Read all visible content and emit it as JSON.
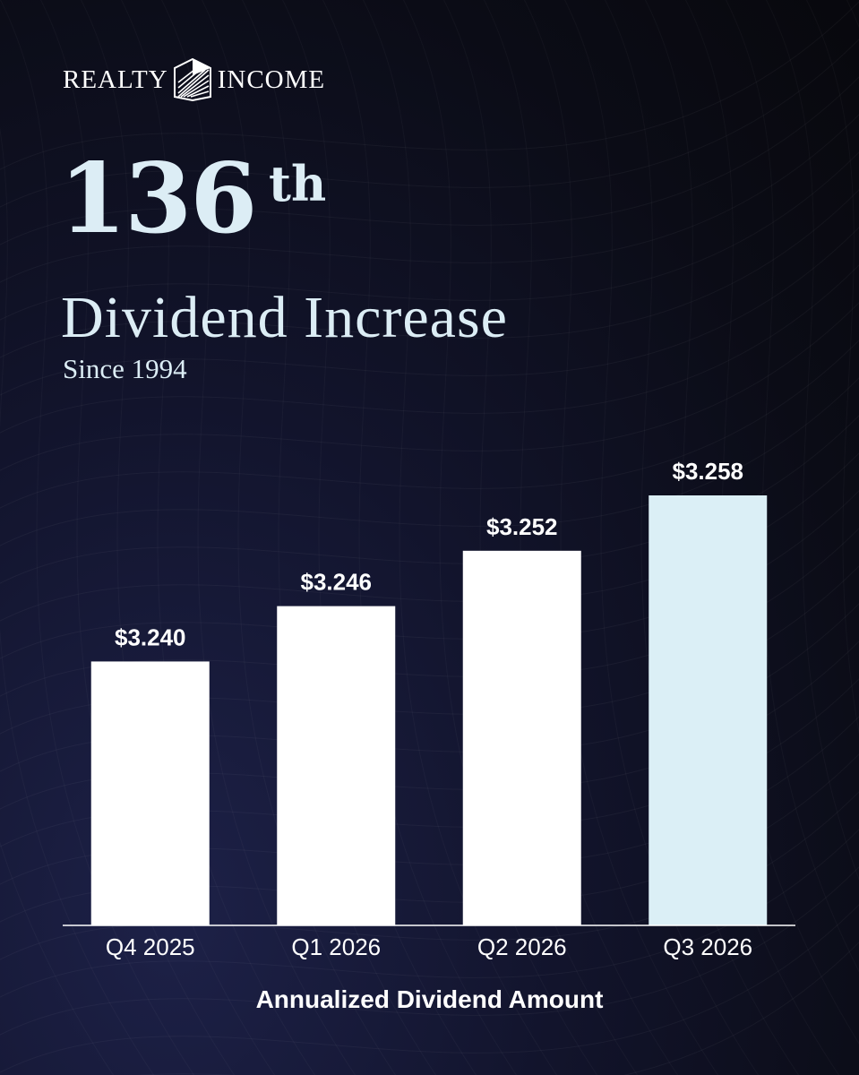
{
  "brand": {
    "word_left": "REALTY",
    "word_right": "INCOME",
    "mark_icon": "realty-income-logo-icon",
    "colors": {
      "mark": "#ffffff"
    }
  },
  "headline": {
    "number": "136",
    "ordinal": "th",
    "title": "Dividend Increase",
    "subtitle": "Since 1994"
  },
  "colors": {
    "heading_text": "#dcedf5",
    "bar_default": "#ffffff",
    "bar_highlight": "#dbeff6",
    "axis_line": "#ffffff",
    "background_dark": "#0b0c16",
    "background_glow": "#1d2148"
  },
  "chart_data": {
    "type": "bar",
    "categories": [
      "Q4 2025",
      "Q1 2026",
      "Q2 2026",
      "Q3 2026"
    ],
    "values": [
      3.24,
      3.246,
      3.252,
      3.258
    ],
    "data_labels": [
      "$3.240",
      "$3.246",
      "$3.252",
      "$3.258"
    ],
    "highlight_index": 3,
    "title": "",
    "xlabel": "Annualized Dividend Amount",
    "ylabel": "",
    "ylim": [
      3.2114,
      3.258
    ],
    "grid": false,
    "legend": "none"
  }
}
